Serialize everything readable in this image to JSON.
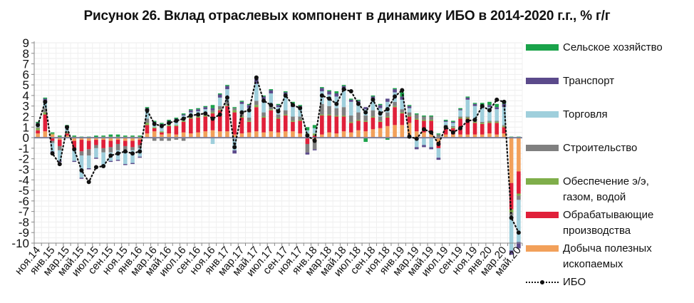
{
  "title": "Рисунок 26. Вклад отраслевых компонент в динамику ИБО в 2014-2020 г.г., % г/г",
  "legend": [
    {
      "key": "agri",
      "label": "Сельское хозяйство",
      "color": "#1aa34a"
    },
    {
      "key": "transport",
      "label": "Транспорт",
      "color": "#5b4a8b"
    },
    {
      "key": "trade",
      "label": "Торговля",
      "color": "#9fcfdc"
    },
    {
      "key": "construction",
      "label": "Строительство",
      "color": "#808080"
    },
    {
      "key": "utilities",
      "label": "Обеспечение э/э, газом, водой",
      "label_lines": [
        "Обеспечение э/э,",
        "газом, водой"
      ],
      "color": "#7fae4a"
    },
    {
      "key": "manufacturing",
      "label": "Обрабатывающие производства",
      "label_lines": [
        "Обрабатывающие",
        "производства"
      ],
      "color": "#e0203a"
    },
    {
      "key": "mining",
      "label": "Добыча полезных ископаемых",
      "label_lines": [
        "Добыча полезных",
        "ископаемых"
      ],
      "color": "#f2a05a"
    },
    {
      "key": "ibo",
      "label": "ИБО",
      "color": "#111111",
      "style": "dotted-line-markers"
    }
  ],
  "chart_data": {
    "type": "bar",
    "stacked": true,
    "title": "Рисунок 26. Вклад отраслевых компонент в динамику ИБО в 2014-2020 г.г., % г/г",
    "xlabel": "",
    "ylabel": "",
    "ylim": [
      -10,
      9
    ],
    "yticks": [
      9,
      8,
      7,
      6,
      5,
      4,
      3,
      2,
      1,
      0,
      -1,
      -2,
      -3,
      -4,
      -5,
      -6,
      -7,
      -8,
      -9,
      -10
    ],
    "grid": true,
    "legend_position": "right",
    "x_tick_labels": [
      "ноя.14",
      "янв.15",
      "мар.15",
      "май.15",
      "июл.15",
      "сен.15",
      "ноя.15",
      "янв.16",
      "мар.16",
      "май.16",
      "июл.16",
      "сен.16",
      "ноя.16",
      "янв.17",
      "мар.17",
      "май.17",
      "июл.17",
      "сен.17",
      "ноя.17",
      "янв.18",
      "мар.18",
      "май.18",
      "июл.18",
      "сен.18",
      "ноя.18",
      "янв.19",
      "мар.19",
      "май.19",
      "июл.19",
      "сен.19",
      "ноя.19",
      "янв.20",
      "мар.20",
      "май.20"
    ],
    "categories": [
      "ноя.14",
      "дек.14",
      "янв.15",
      "фев.15",
      "мар.15",
      "апр.15",
      "май.15",
      "июн.15",
      "июл.15",
      "авг.15",
      "сен.15",
      "окт.15",
      "ноя.15",
      "дек.15",
      "янв.16",
      "фев.16",
      "мар.16",
      "апр.16",
      "май.16",
      "июн.16",
      "июл.16",
      "авг.16",
      "сен.16",
      "окт.16",
      "ноя.16",
      "дек.16",
      "янв.17",
      "фев.17",
      "мар.17",
      "апр.17",
      "май.17",
      "июн.17",
      "июл.17",
      "авг.17",
      "сен.17",
      "окт.17",
      "ноя.17",
      "дек.17",
      "янв.18",
      "фев.18",
      "мар.18",
      "апр.18",
      "май.18",
      "июн.18",
      "июл.18",
      "авг.18",
      "сен.18",
      "окт.18",
      "ноя.18",
      "дек.18",
      "янв.19",
      "фев.19",
      "мар.19",
      "апр.19",
      "май.19",
      "июн.19",
      "июл.19",
      "авг.19",
      "сен.19",
      "окт.19",
      "ноя.19",
      "дек.19",
      "янв.20",
      "фев.20",
      "мар.20",
      "апр.20",
      "май.20"
    ],
    "series": [
      {
        "name": "Добыча полезных ископаемых",
        "key": "mining",
        "values": [
          0.4,
          0.6,
          0.3,
          -0.2,
          0.2,
          -0.3,
          -0.2,
          -0.3,
          -0.2,
          -0.2,
          -0.3,
          -0.2,
          -0.3,
          -0.3,
          -0.2,
          0.4,
          0.6,
          0.3,
          0.4,
          0.3,
          0.5,
          0.4,
          0.5,
          0.6,
          0.7,
          0.6,
          0.6,
          0.3,
          0.4,
          0.5,
          0.6,
          0.5,
          0.6,
          0.5,
          0.6,
          0.6,
          0.4,
          0.2,
          -0.4,
          0.3,
          0.5,
          0.4,
          0.6,
          0.5,
          0.7,
          0.6,
          0.8,
          0.9,
          1.1,
          1.2,
          1.2,
          1.4,
          0.6,
          0.5,
          0.4,
          -0.4,
          0.3,
          0.3,
          0.3,
          0.3,
          0.3,
          0.3,
          0.4,
          0.3,
          0.4,
          -4.3,
          -3.2
        ]
      },
      {
        "name": "Обрабатывающие производства",
        "key": "manufacturing",
        "values": [
          0.3,
          1.6,
          -0.3,
          -0.6,
          0.2,
          -0.7,
          -1.1,
          -0.8,
          -0.5,
          -0.8,
          -0.6,
          -0.4,
          -0.5,
          -0.6,
          -0.5,
          0.8,
          0.3,
          0.2,
          0.7,
          0.8,
          1.0,
          1.4,
          1.4,
          1.4,
          1.6,
          2.0,
          2.4,
          2.1,
          1.5,
          1.0,
          2.3,
          1.4,
          2.0,
          1.3,
          1.5,
          0.9,
          1.2,
          -0.6,
          0.2,
          1.8,
          1.6,
          1.6,
          1.4,
          0.9,
          0.9,
          0.9,
          1.1,
          0.6,
          0.8,
          1.7,
          1.1,
          0.6,
          1.1,
          1.1,
          1.2,
          -0.6,
          0.6,
          0.6,
          1.5,
          1.5,
          1.1,
          1.0,
          1.0,
          1.1,
          0.6,
          -2.5,
          -2.1
        ]
      },
      {
        "name": "Обеспечение э/э, газом, водой",
        "key": "utilities",
        "values": [
          0.2,
          0.2,
          0.1,
          0.1,
          0.1,
          0.1,
          0.0,
          0.0,
          0.0,
          0.1,
          0.1,
          0.1,
          0.1,
          0.1,
          0.1,
          0.2,
          0.1,
          0.1,
          0.1,
          0.1,
          0.1,
          0.1,
          0.1,
          0.1,
          0.1,
          0.1,
          0.1,
          0.2,
          0.1,
          0.1,
          0.2,
          0.1,
          0.1,
          0.1,
          0.1,
          0.1,
          0.1,
          0.2,
          0.2,
          0.1,
          0.1,
          0.1,
          0.1,
          0.1,
          0.1,
          0.1,
          0.1,
          0.1,
          0.1,
          0.1,
          0.1,
          0.1,
          0.1,
          0.1,
          0.1,
          0.1,
          0.1,
          0.1,
          0.1,
          0.1,
          0.1,
          0.1,
          0.1,
          0.1,
          0.1,
          -0.3,
          -0.2
        ]
      },
      {
        "name": "Строительство",
        "key": "construction",
        "values": [
          0.1,
          0.4,
          -0.2,
          -0.4,
          0.1,
          -0.2,
          -0.4,
          -0.6,
          -0.3,
          -0.4,
          -0.5,
          -0.6,
          -0.4,
          -0.3,
          -0.3,
          0.4,
          -0.3,
          -0.3,
          -0.3,
          -0.2,
          -0.3,
          0.1,
          0.1,
          0.2,
          0.2,
          0.3,
          0.3,
          0.2,
          0.3,
          0.3,
          0.4,
          0.4,
          0.4,
          0.3,
          0.4,
          0.4,
          0.3,
          -0.8,
          -0.7,
          1.0,
          0.8,
          0.7,
          0.8,
          0.6,
          0.7,
          0.5,
          0.6,
          0.4,
          0.4,
          0.4,
          0.3,
          0.3,
          0.4,
          0.3,
          0.3,
          0.2,
          0.2,
          0.1,
          0.1,
          0.1,
          0.1,
          0.1,
          0.1,
          0.1,
          0.1,
          -0.3,
          -0.4
        ]
      },
      {
        "name": "Торговля",
        "key": "trade",
        "values": [
          0.3,
          0.6,
          -0.8,
          -1.0,
          0.3,
          -1.0,
          -2.1,
          -1.2,
          -0.9,
          -1.2,
          -0.8,
          -0.9,
          -1.3,
          -1.2,
          -0.8,
          0.8,
          0.4,
          0.6,
          0.3,
          0.5,
          0.5,
          0.4,
          0.4,
          0.4,
          -0.6,
          0.8,
          1.2,
          -1.2,
          0.9,
          0.9,
          1.6,
          1.2,
          1.1,
          0.7,
          1.3,
          0.9,
          0.8,
          0.3,
          0.5,
          1.2,
          1.1,
          1.1,
          1.6,
          1.3,
          0.9,
          0.6,
          1.0,
          0.8,
          1.0,
          0.9,
          0.9,
          0.4,
          -0.9,
          -0.7,
          -0.9,
          -0.9,
          0.3,
          0.3,
          0.6,
          1.6,
          1.4,
          1.3,
          1.3,
          1.1,
          1.7,
          -3.3,
          -4.0
        ]
      },
      {
        "name": "Транспорт",
        "key": "transport",
        "values": [
          0.1,
          0.3,
          -0.1,
          -0.1,
          0.1,
          -0.1,
          -0.1,
          -0.1,
          -0.1,
          -0.1,
          -0.1,
          -0.1,
          -0.1,
          -0.1,
          -0.1,
          0.2,
          0.1,
          0.1,
          0.1,
          0.1,
          0.1,
          0.2,
          0.2,
          0.2,
          0.2,
          0.3,
          0.3,
          -0.3,
          0.2,
          0.3,
          0.6,
          0.3,
          0.3,
          0.2,
          0.4,
          0.3,
          0.2,
          -0.2,
          -0.1,
          0.3,
          0.3,
          0.3,
          0.4,
          0.2,
          0.2,
          0.2,
          0.3,
          0.3,
          0.3,
          0.3,
          0.3,
          0.2,
          -0.2,
          -0.2,
          -0.2,
          -0.2,
          0.1,
          0.1,
          0.1,
          0.2,
          0.2,
          0.2,
          0.2,
          0.2,
          0.3,
          -0.4,
          -0.6
        ]
      },
      {
        "name": "Сельское хозяйство",
        "key": "agri",
        "values": [
          0.1,
          0.1,
          0.1,
          0.1,
          0.2,
          0.1,
          0.1,
          0.1,
          0.2,
          0.1,
          0.2,
          0.2,
          0.1,
          0.1,
          0.1,
          0.1,
          0.1,
          0.1,
          0.1,
          0.1,
          0.1,
          0.1,
          0.1,
          0.1,
          0.3,
          0.1,
          0.1,
          0.1,
          0.1,
          0.1,
          0.1,
          0.1,
          0.1,
          0.1,
          0.1,
          0.2,
          0.1,
          0.3,
          0.3,
          0.1,
          0.1,
          0.2,
          0.1,
          0.1,
          0.1,
          -0.4,
          0.1,
          0.1,
          -0.2,
          0.1,
          0.4,
          0.1,
          0.1,
          0.1,
          0.1,
          0.1,
          0.1,
          0.1,
          0.1,
          0.1,
          0.1,
          0.3,
          0.3,
          0.3,
          0.3,
          0.1,
          0.1
        ]
      },
      {
        "name": "ИБО",
        "key": "ibo",
        "type": "line",
        "values": [
          1.2,
          3.4,
          -1.5,
          -2.5,
          1.0,
          -1.1,
          -3.1,
          -4.2,
          -2.8,
          -2.7,
          -1.7,
          -1.5,
          -1.3,
          -1.5,
          -1.3,
          2.6,
          1.3,
          1.1,
          1.4,
          1.6,
          1.8,
          2.1,
          2.2,
          2.3,
          1.8,
          2.2,
          3.8,
          -0.9,
          2.4,
          2.6,
          5.7,
          3.5,
          3.1,
          2.5,
          4.0,
          3.1,
          2.8,
          0.2,
          -0.3,
          4.0,
          3.7,
          3.2,
          4.6,
          4.4,
          3.2,
          2.4,
          3.6,
          2.3,
          2.7,
          3.9,
          4.5,
          0.1,
          -0.1,
          0.8,
          0.5,
          -0.6,
          1.0,
          0.5,
          0.9,
          1.6,
          1.7,
          3.0,
          2.6,
          3.6,
          3.4,
          -7.6,
          -9.0
        ]
      }
    ]
  }
}
